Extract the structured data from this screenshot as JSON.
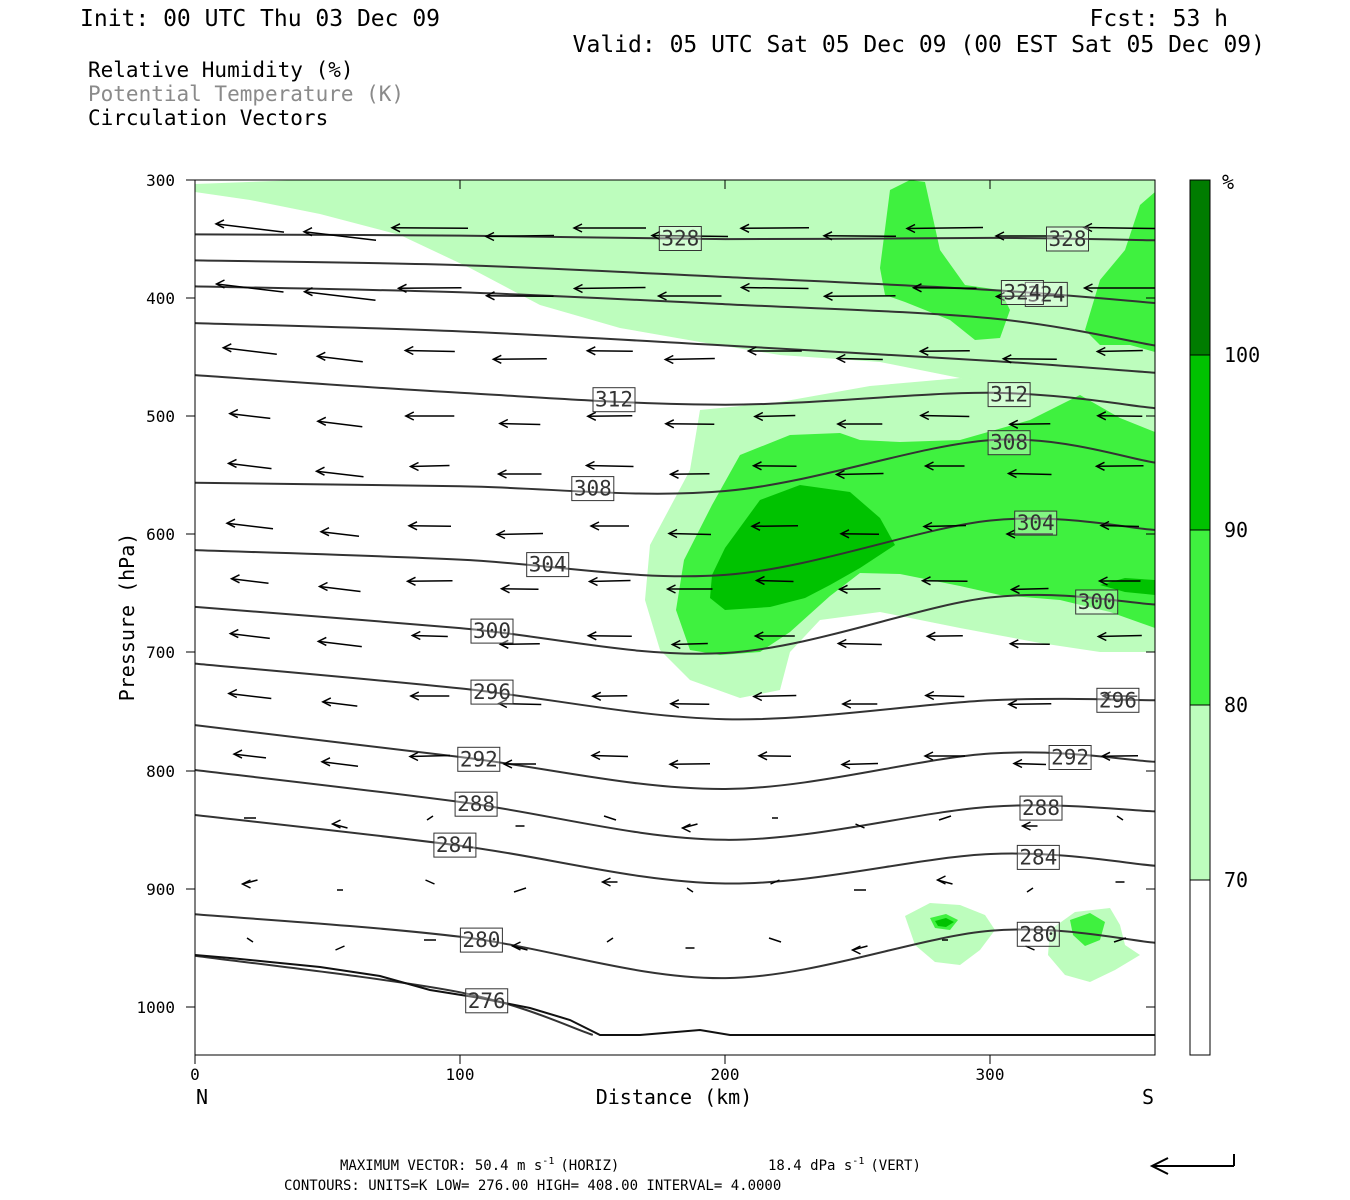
{
  "header": {
    "init": "Init: 00 UTC Thu 03 Dec 09",
    "fcst": "Fcst:   53 h",
    "valid": "Valid: 05 UTC Sat 05 Dec 09 (00 EST Sat 05 Dec 09)"
  },
  "legend_text": {
    "rh": "Relative Humidity (%)",
    "theta": "Potential Temperature (K)",
    "vectors": "Circulation Vectors"
  },
  "colorbar": {
    "unit": "%",
    "labels": [
      "70",
      "80",
      "90",
      "100"
    ],
    "colors": [
      "#ffffff",
      "#bdfdbd",
      "#3ff13f",
      "#00c200",
      "#007c00"
    ]
  },
  "chart_data": {
    "type": "cross-section contour",
    "x_axis": {
      "label": "Distance (km)",
      "range": [
        0,
        362
      ],
      "ticks": [
        "0",
        "100",
        "200",
        "300"
      ],
      "left_end": "N",
      "right_end": "S"
    },
    "y_axis": {
      "label": "Pressure (hPa)",
      "range": [
        300,
        1040
      ],
      "inverted": true,
      "ticks": [
        "300",
        "400",
        "500",
        "600",
        "700",
        "800",
        "900",
        "1000"
      ]
    },
    "theta_contours": [
      {
        "value": 328,
        "label": "328",
        "p": [
          [
            0,
            346
          ],
          [
            100,
            347
          ],
          [
            200,
            350
          ],
          [
            300,
            349
          ],
          [
            362,
            351
          ]
        ]
      },
      {
        "value": 324,
        "label": "324",
        "p": [
          [
            0,
            368
          ],
          [
            100,
            372
          ],
          [
            200,
            382
          ],
          [
            300,
            393
          ],
          [
            362,
            404
          ]
        ]
      },
      {
        "value": 320,
        "label": "",
        "p": [
          [
            0,
            390
          ],
          [
            100,
            395
          ],
          [
            200,
            405
          ],
          [
            300,
            417
          ],
          [
            362,
            440
          ]
        ]
      },
      {
        "value": 316,
        "label": "",
        "p": [
          [
            0,
            421
          ],
          [
            100,
            428
          ],
          [
            200,
            440
          ],
          [
            300,
            453
          ],
          [
            362,
            463
          ]
        ]
      },
      {
        "value": 312,
        "label": "312",
        "p": [
          [
            0,
            465
          ],
          [
            100,
            480
          ],
          [
            200,
            490
          ],
          [
            300,
            480
          ],
          [
            362,
            493
          ]
        ]
      },
      {
        "value": 308,
        "label": "308",
        "p": [
          [
            0,
            556
          ],
          [
            100,
            559
          ],
          [
            200,
            563
          ],
          [
            300,
            520
          ],
          [
            362,
            539
          ]
        ]
      },
      {
        "value": 304,
        "label": "304",
        "p": [
          [
            0,
            613
          ],
          [
            100,
            621
          ],
          [
            200,
            634
          ],
          [
            300,
            588
          ],
          [
            362,
            596
          ]
        ]
      },
      {
        "value": 300,
        "label": "300",
        "p": [
          [
            0,
            661
          ],
          [
            100,
            679
          ],
          [
            200,
            700
          ],
          [
            300,
            653
          ],
          [
            362,
            659
          ]
        ]
      },
      {
        "value": 296,
        "label": "296",
        "p": [
          [
            0,
            709
          ],
          [
            100,
            730
          ],
          [
            200,
            756
          ],
          [
            300,
            740
          ],
          [
            362,
            740
          ]
        ]
      },
      {
        "value": 292,
        "label": "292",
        "p": [
          [
            0,
            761
          ],
          [
            100,
            788
          ],
          [
            200,
            815
          ],
          [
            300,
            785
          ],
          [
            362,
            792
          ]
        ]
      },
      {
        "value": 288,
        "label": "288",
        "p": [
          [
            0,
            799
          ],
          [
            100,
            826
          ],
          [
            200,
            858
          ],
          [
            300,
            830
          ],
          [
            362,
            834
          ]
        ]
      },
      {
        "value": 284,
        "label": "284",
        "p": [
          [
            0,
            837
          ],
          [
            100,
            863
          ],
          [
            200,
            895
          ],
          [
            300,
            870
          ],
          [
            362,
            880
          ]
        ]
      },
      {
        "value": 280,
        "label": "280",
        "p": [
          [
            0,
            921
          ],
          [
            100,
            940
          ],
          [
            200,
            975
          ],
          [
            300,
            935
          ],
          [
            362,
            945
          ]
        ]
      },
      {
        "value": 276,
        "label": "276",
        "p": [
          [
            0,
            956
          ],
          [
            100,
            987
          ],
          [
            150,
            1023
          ]
        ]
      }
    ],
    "rh_regions": [
      {
        "level": ">=70",
        "description": "upper-level moist band and mid-level moist plume"
      },
      {
        "level": ">=80",
        "description": "mid-level plume 180-362 km, 530-680 hPa; upper pockets near 270 km and 350 km"
      },
      {
        "level": ">=90",
        "description": "core near 200-260 km, 580-660 hPa; small patches near 285 km and 340 km"
      }
    ],
    "vectors": {
      "direction": "predominantly northward (leftward) flow",
      "max_horizontal": "50.4 m s-1",
      "max_vertical": "18.4 dPa s-1"
    }
  },
  "footer": {
    "max_vector": "MAXIMUM VECTOR:  50.4 m s",
    "horiz": "(HORIZ)",
    "vert_val": "18.4 dPa s",
    "vert": "(VERT)",
    "sup": "-1",
    "contours": "CONTOURS:  UNITS=K  LOW=  276.00       HIGH=  408.00       INTERVAL=    4.0000"
  }
}
